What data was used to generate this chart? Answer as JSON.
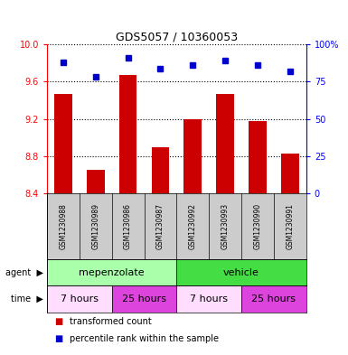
{
  "title": "GDS5057 / 10360053",
  "samples": [
    "GSM1230988",
    "GSM1230989",
    "GSM1230986",
    "GSM1230987",
    "GSM1230992",
    "GSM1230993",
    "GSM1230990",
    "GSM1230991"
  ],
  "transformed_count": [
    9.47,
    8.65,
    9.67,
    8.9,
    9.2,
    9.47,
    9.18,
    8.83
  ],
  "percentile_rank": [
    88,
    78,
    91,
    84,
    86,
    89,
    86,
    82
  ],
  "ylim_left": [
    8.4,
    10.0
  ],
  "ylim_right": [
    0,
    100
  ],
  "yticks_left": [
    8.4,
    8.8,
    9.2,
    9.6,
    10.0
  ],
  "yticks_right": [
    0,
    25,
    50,
    75,
    100
  ],
  "bar_color": "#cc0000",
  "dot_color": "#0000cc",
  "bar_base": 8.4,
  "agent_row": [
    {
      "label": "mepenzolate",
      "span": [
        0,
        4
      ],
      "color": "#aaffaa"
    },
    {
      "label": "vehicle",
      "span": [
        4,
        8
      ],
      "color": "#44dd44"
    }
  ],
  "time_row": [
    {
      "label": "7 hours",
      "span": [
        0,
        2
      ],
      "color": "#ffddff"
    },
    {
      "label": "25 hours",
      "span": [
        2,
        4
      ],
      "color": "#dd44dd"
    },
    {
      "label": "7 hours",
      "span": [
        4,
        6
      ],
      "color": "#ffddff"
    },
    {
      "label": "25 hours",
      "span": [
        6,
        8
      ],
      "color": "#dd44dd"
    }
  ],
  "legend_items": [
    {
      "color": "#cc0000",
      "label": "transformed count"
    },
    {
      "color": "#0000cc",
      "label": "percentile rank within the sample"
    }
  ],
  "background_color": "#ffffff",
  "sample_bg_color": "#cccccc"
}
